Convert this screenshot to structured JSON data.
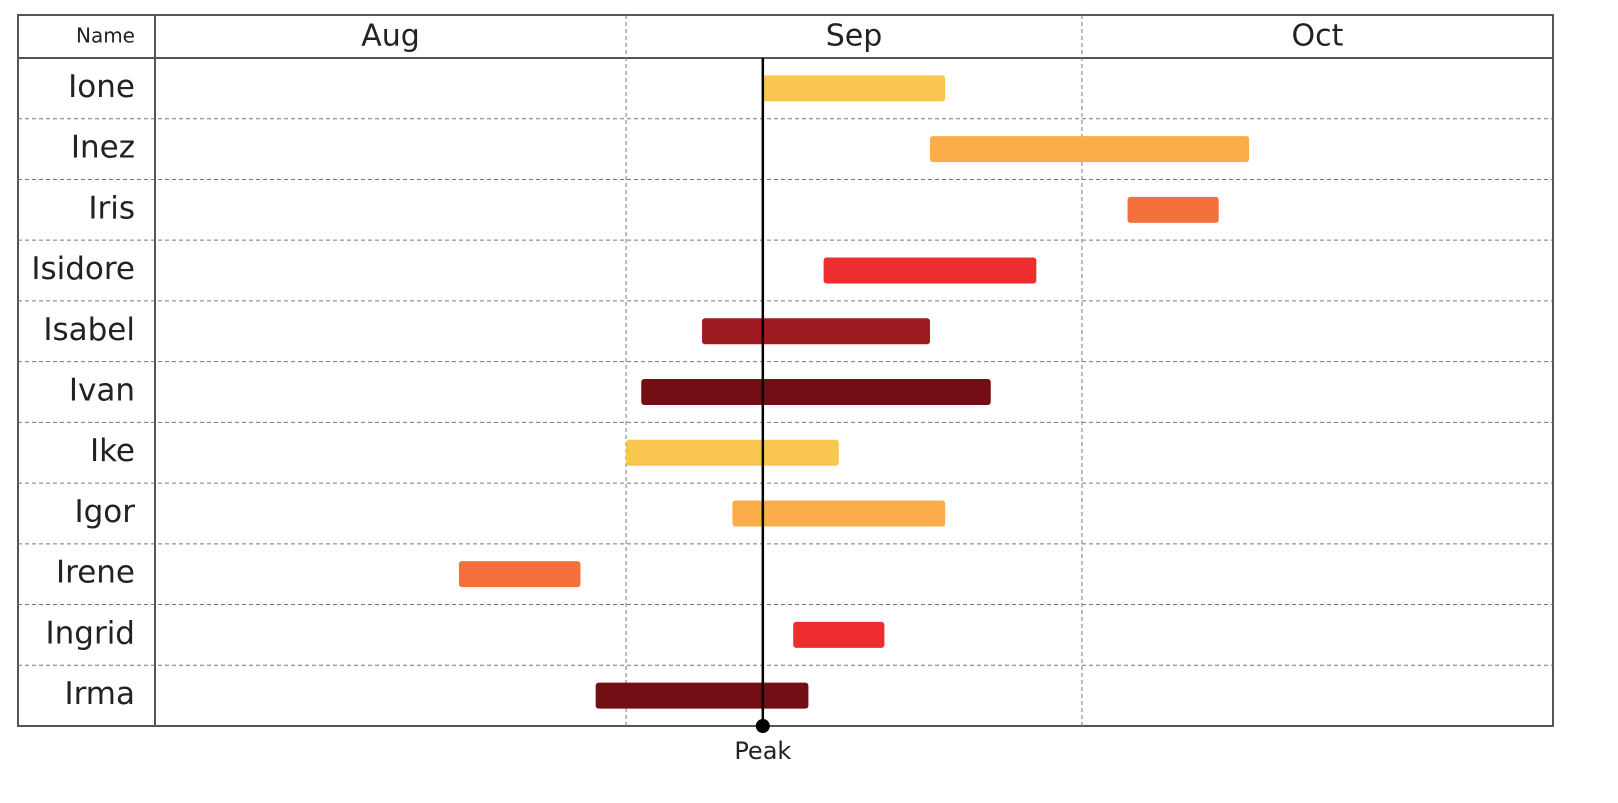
{
  "chart_data": {
    "type": "gantt",
    "name_header": "Name",
    "months": [
      "Aug",
      "Sep",
      "Oct"
    ],
    "xlim": [
      0,
      92
    ],
    "xticks": [
      0,
      31,
      61,
      92
    ],
    "categories": [
      "Ione",
      "Inez",
      "Iris",
      "Isidore",
      "Isabel",
      "Ivan",
      "Ike",
      "Igor",
      "Irene",
      "Ingrid",
      "Irma"
    ],
    "start": [
      40,
      51,
      64,
      44,
      36,
      32,
      31,
      38,
      20,
      42,
      29
    ],
    "end": [
      52,
      72,
      70,
      58,
      51,
      55,
      45,
      52,
      28,
      48,
      43
    ],
    "colors": [
      "#f9c74f",
      "#fbad4a",
      "#f4703c",
      "#ee2e2e",
      "#9e1a20",
      "#730f14",
      "#f9c74f",
      "#fbad4a",
      "#f4703c",
      "#ee2e2e",
      "#730f14"
    ],
    "marker": {
      "label": "Peak",
      "x": 40
    }
  }
}
